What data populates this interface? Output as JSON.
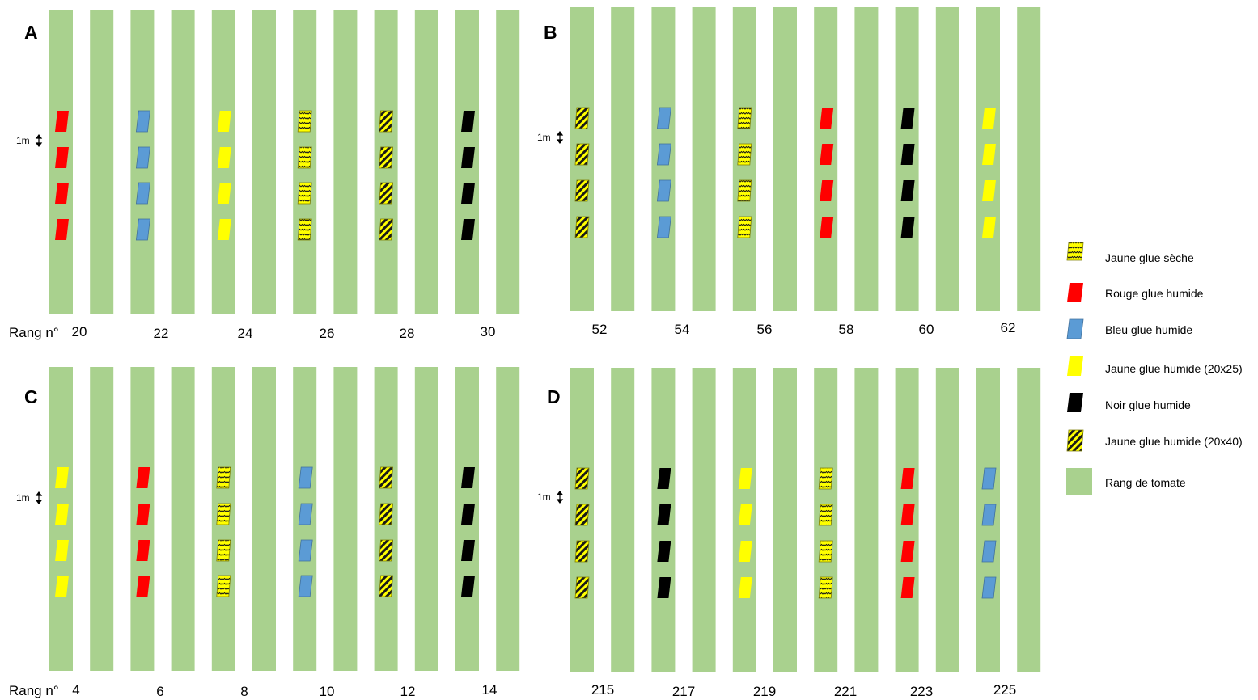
{
  "colors": {
    "row_green": "#a9d18e",
    "red": "#ff0000",
    "blue": "#5b9bd5",
    "yellow": "#ffff00",
    "black": "#000000",
    "stripe": "#1a1a1a"
  },
  "scale_label": "1m",
  "rang_prefix": "Rang n°",
  "panels": [
    {
      "letter": "A",
      "row_numbers": [
        "20",
        "22",
        "24",
        "26",
        "28",
        "30"
      ],
      "trap_types": [
        "red",
        "blue",
        "yellow_wet_20x25",
        "yellow_dry",
        "yellow_wet_20x40",
        "black"
      ]
    },
    {
      "letter": "B",
      "row_numbers": [
        "52",
        "54",
        "56",
        "58",
        "60",
        "62"
      ],
      "trap_types": [
        "yellow_wet_20x40",
        "blue",
        "yellow_dry",
        "red",
        "black",
        "yellow_wet_20x25"
      ]
    },
    {
      "letter": "C",
      "row_numbers": [
        "4",
        "6",
        "8",
        "10",
        "12",
        "14"
      ],
      "trap_types": [
        "yellow_wet_20x25",
        "red",
        "yellow_dry",
        "blue",
        "yellow_wet_20x40",
        "black"
      ]
    },
    {
      "letter": "D",
      "row_numbers": [
        "215",
        "217",
        "219",
        "221",
        "223",
        "225"
      ],
      "trap_types": [
        "yellow_wet_20x40",
        "black",
        "yellow_wet_20x25",
        "yellow_dry",
        "red",
        "blue"
      ]
    }
  ],
  "legend": [
    {
      "type": "yellow_dry",
      "label": "Jaune glue sèche"
    },
    {
      "type": "red",
      "label": "Rouge glue humide"
    },
    {
      "type": "blue",
      "label": "Bleu glue humide"
    },
    {
      "type": "yellow_wet_20x25",
      "label": "Jaune glue humide (20x25)"
    },
    {
      "type": "black",
      "label": "Noir glue humide"
    },
    {
      "type": "yellow_wet_20x40",
      "label": "Jaune glue humide (20x40)"
    },
    {
      "type": "row",
      "label": "Rang de tomate"
    }
  ]
}
